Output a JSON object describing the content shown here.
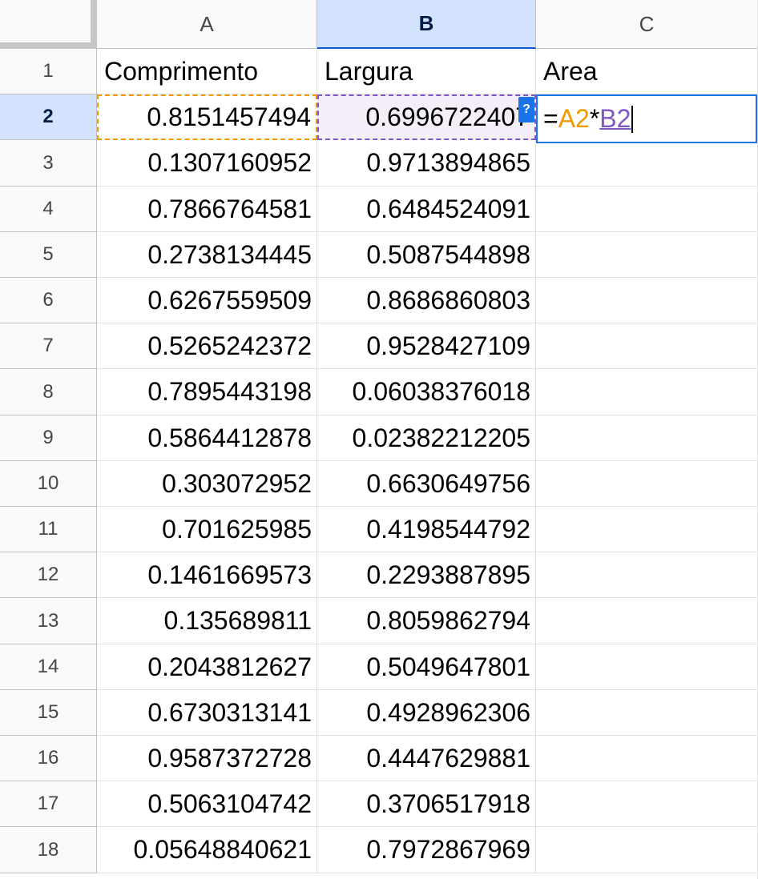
{
  "columns": [
    "A",
    "B",
    "C"
  ],
  "active_column": "B",
  "row_numbers": [
    "1",
    "2",
    "3",
    "4",
    "5",
    "6",
    "7",
    "8",
    "9",
    "10",
    "11",
    "12",
    "13",
    "14",
    "15",
    "16",
    "17",
    "18"
  ],
  "active_row": "2",
  "headers": {
    "a": "Comprimento",
    "b": "Largura",
    "c": "Area"
  },
  "rows": [
    {
      "a": "0.8151457494",
      "b": "0.6996722407",
      "c": ""
    },
    {
      "a": "0.1307160952",
      "b": "0.9713894865",
      "c": ""
    },
    {
      "a": "0.7866764581",
      "b": "0.6484524091",
      "c": ""
    },
    {
      "a": "0.2738134445",
      "b": "0.5087544898",
      "c": ""
    },
    {
      "a": "0.6267559509",
      "b": "0.8686860803",
      "c": ""
    },
    {
      "a": "0.5265242372",
      "b": "0.9528427109",
      "c": ""
    },
    {
      "a": "0.7895443198",
      "b": "0.06038376018",
      "c": ""
    },
    {
      "a": "0.5864412878",
      "b": "0.02382212205",
      "c": ""
    },
    {
      "a": "0.303072952",
      "b": "0.6630649756",
      "c": ""
    },
    {
      "a": "0.701625985",
      "b": "0.4198544792",
      "c": ""
    },
    {
      "a": "0.1461669573",
      "b": "0.2293887895",
      "c": ""
    },
    {
      "a": "0.135689811",
      "b": "0.8059862794",
      "c": ""
    },
    {
      "a": "0.2043812627",
      "b": "0.5049647801",
      "c": ""
    },
    {
      "a": "0.6730313141",
      "b": "0.4928962306",
      "c": ""
    },
    {
      "a": "0.9587372728",
      "b": "0.4447629881",
      "c": ""
    },
    {
      "a": "0.5063104742",
      "b": "0.3706517918",
      "c": ""
    },
    {
      "a": "0.05648840621",
      "b": "0.7972867969",
      "c": ""
    }
  ],
  "editor": {
    "eq": "=",
    "ref_a": "A2",
    "op": "*",
    "ref_b": "B2"
  },
  "help_icon": "?",
  "colors": {
    "ref_a": "#f29900",
    "ref_b": "#7e57c2",
    "selection": "#1a73e8",
    "header_active": "#d3e3fd"
  }
}
